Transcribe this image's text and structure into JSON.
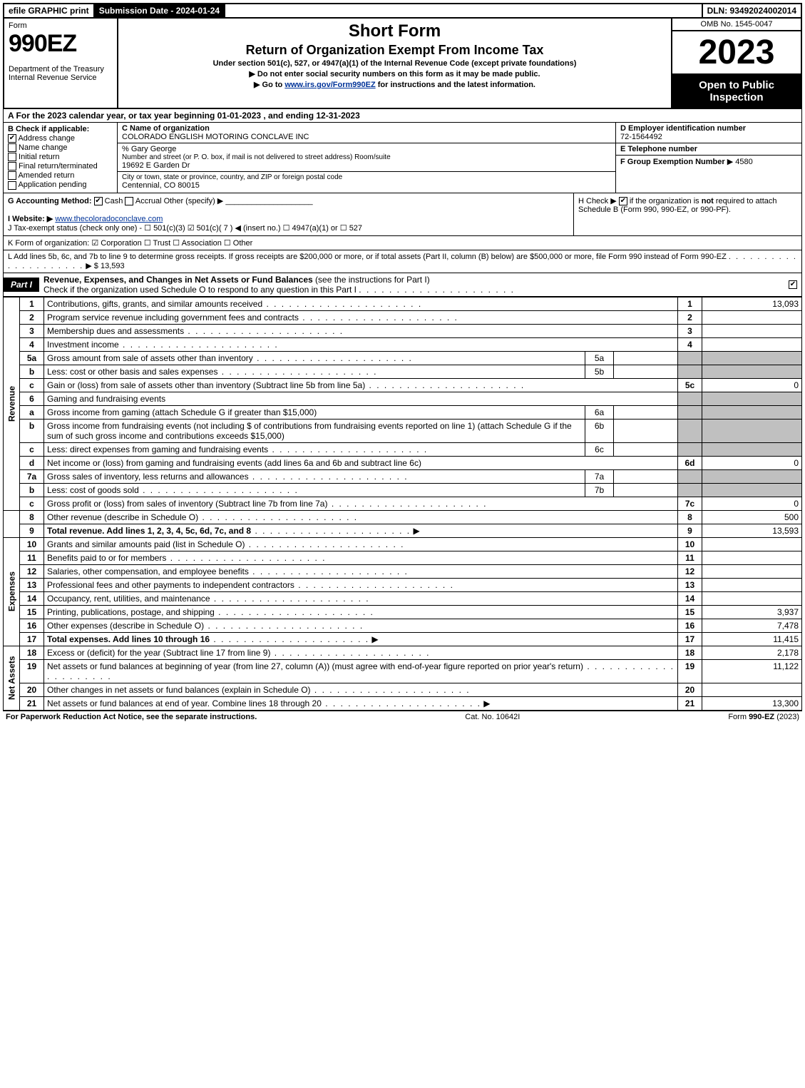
{
  "topbar": {
    "efile": "efile GRAPHIC print",
    "submission": "Submission Date - 2024-01-24",
    "dln": "DLN: 93492024002014"
  },
  "header": {
    "form_label": "Form",
    "form_no": "990EZ",
    "dept": "Department of the Treasury\nInternal Revenue Service",
    "title1": "Short Form",
    "title2": "Return of Organization Exempt From Income Tax",
    "under": "Under section 501(c), 527, or 4947(a)(1) of the Internal Revenue Code (except private foundations)",
    "warn": "▶ Do not enter social security numbers on this form as it may be made public.",
    "goto_pre": "▶ Go to ",
    "goto_link": "www.irs.gov/Form990EZ",
    "goto_post": " for instructions and the latest information.",
    "omb": "OMB No. 1545-0047",
    "year": "2023",
    "open": "Open to Public Inspection"
  },
  "rowA": "A  For the 2023 calendar year, or tax year beginning 01-01-2023 , and ending 12-31-2023",
  "B": {
    "label": "B  Check if applicable:",
    "items": [
      {
        "c": true,
        "t": "Address change"
      },
      {
        "c": false,
        "t": "Name change"
      },
      {
        "c": false,
        "t": "Initial return"
      },
      {
        "c": false,
        "t": "Final return/terminated"
      },
      {
        "c": false,
        "t": "Amended return"
      },
      {
        "c": false,
        "t": "Application pending"
      }
    ]
  },
  "C": {
    "name_lbl": "C Name of organization",
    "name": "COLORADO ENGLISH MOTORING CONCLAVE INC",
    "care": "% Gary George",
    "street_lbl": "Number and street (or P. O. box, if mail is not delivered to street address)        Room/suite",
    "street": "19692 E Garden Dr",
    "city_lbl": "City or town, state or province, country, and ZIP or foreign postal code",
    "city": "Centennial, CO  80015"
  },
  "D": {
    "lbl": "D Employer identification number",
    "val": "72-1564492"
  },
  "E": {
    "lbl": "E Telephone number",
    "val": ""
  },
  "F": {
    "lbl": "F Group Exemption Number",
    "arrow": "▶",
    "val": "4580"
  },
  "G": {
    "lbl": "G Accounting Method:",
    "cash": "Cash",
    "accrual": "Accrual",
    "other": "Other (specify) ▶",
    "cash_checked": true
  },
  "H": {
    "txt1": "H  Check ▶ ",
    "txt2": " if the organization is ",
    "not": "not",
    "txt3": " required to attach Schedule B (Form 990, 990-EZ, or 990-PF).",
    "checked": true
  },
  "I": {
    "lbl": "I Website: ▶",
    "val": "www.thecoloradoconclave.com"
  },
  "J": "J Tax-exempt status (check only one) -  ☐ 501(c)(3)  ☑ 501(c)( 7 ) ◀ (insert no.)  ☐ 4947(a)(1) or  ☐ 527",
  "K": "K Form of organization:  ☑ Corporation  ☐ Trust  ☐ Association  ☐ Other",
  "L": {
    "txt": "L Add lines 5b, 6c, and 7b to line 9 to determine gross receipts. If gross receipts are $200,000 or more, or if total assets (Part II, column (B) below) are $500,000 or more, file Form 990 instead of Form 990-EZ",
    "arrow": "▶ $",
    "val": "13,593"
  },
  "part1": {
    "tag": "Part I",
    "title": "Revenue, Expenses, and Changes in Net Assets or Fund Balances",
    "instr": "(see the instructions for Part I)",
    "check_txt": "Check if the organization used Schedule O to respond to any question in this Part I",
    "checked": true
  },
  "side": {
    "rev": "Revenue",
    "exp": "Expenses",
    "net": "Net Assets"
  },
  "lines": {
    "l1": {
      "n": "1",
      "d": "Contributions, gifts, grants, and similar amounts received",
      "ln": "1",
      "a": "13,093"
    },
    "l2": {
      "n": "2",
      "d": "Program service revenue including government fees and contracts",
      "ln": "2",
      "a": ""
    },
    "l3": {
      "n": "3",
      "d": "Membership dues and assessments",
      "ln": "3",
      "a": ""
    },
    "l4": {
      "n": "4",
      "d": "Investment income",
      "ln": "4",
      "a": ""
    },
    "l5a": {
      "n": "5a",
      "d": "Gross amount from sale of assets other than inventory",
      "sn": "5a",
      "sa": ""
    },
    "l5b": {
      "n": "b",
      "d": "Less: cost or other basis and sales expenses",
      "sn": "5b",
      "sa": ""
    },
    "l5c": {
      "n": "c",
      "d": "Gain or (loss) from sale of assets other than inventory (Subtract line 5b from line 5a)",
      "ln": "5c",
      "a": "0"
    },
    "l6": {
      "n": "6",
      "d": "Gaming and fundraising events"
    },
    "l6a": {
      "n": "a",
      "d": "Gross income from gaming (attach Schedule G if greater than $15,000)",
      "sn": "6a",
      "sa": ""
    },
    "l6b": {
      "n": "b",
      "d": "Gross income from fundraising events (not including $                     of contributions from fundraising events reported on line 1) (attach Schedule G if the sum of such gross income and contributions exceeds $15,000)",
      "sn": "6b",
      "sa": ""
    },
    "l6c": {
      "n": "c",
      "d": "Less: direct expenses from gaming and fundraising events",
      "sn": "6c",
      "sa": ""
    },
    "l6d": {
      "n": "d",
      "d": "Net income or (loss) from gaming and fundraising events (add lines 6a and 6b and subtract line 6c)",
      "ln": "6d",
      "a": "0"
    },
    "l7a": {
      "n": "7a",
      "d": "Gross sales of inventory, less returns and allowances",
      "sn": "7a",
      "sa": ""
    },
    "l7b": {
      "n": "b",
      "d": "Less: cost of goods sold",
      "sn": "7b",
      "sa": ""
    },
    "l7c": {
      "n": "c",
      "d": "Gross profit or (loss) from sales of inventory (Subtract line 7b from line 7a)",
      "ln": "7c",
      "a": "0"
    },
    "l8": {
      "n": "8",
      "d": "Other revenue (describe in Schedule O)",
      "ln": "8",
      "a": "500"
    },
    "l9": {
      "n": "9",
      "d": "Total revenue. Add lines 1, 2, 3, 4, 5c, 6d, 7c, and 8",
      "ln": "9",
      "a": "13,593",
      "bold": true,
      "arrow": true
    },
    "l10": {
      "n": "10",
      "d": "Grants and similar amounts paid (list in Schedule O)",
      "ln": "10",
      "a": ""
    },
    "l11": {
      "n": "11",
      "d": "Benefits paid to or for members",
      "ln": "11",
      "a": ""
    },
    "l12": {
      "n": "12",
      "d": "Salaries, other compensation, and employee benefits",
      "ln": "12",
      "a": ""
    },
    "l13": {
      "n": "13",
      "d": "Professional fees and other payments to independent contractors",
      "ln": "13",
      "a": ""
    },
    "l14": {
      "n": "14",
      "d": "Occupancy, rent, utilities, and maintenance",
      "ln": "14",
      "a": ""
    },
    "l15": {
      "n": "15",
      "d": "Printing, publications, postage, and shipping",
      "ln": "15",
      "a": "3,937"
    },
    "l16": {
      "n": "16",
      "d": "Other expenses (describe in Schedule O)",
      "ln": "16",
      "a": "7,478"
    },
    "l17": {
      "n": "17",
      "d": "Total expenses. Add lines 10 through 16",
      "ln": "17",
      "a": "11,415",
      "bold": true,
      "arrow": true
    },
    "l18": {
      "n": "18",
      "d": "Excess or (deficit) for the year (Subtract line 17 from line 9)",
      "ln": "18",
      "a": "2,178"
    },
    "l19": {
      "n": "19",
      "d": "Net assets or fund balances at beginning of year (from line 27, column (A)) (must agree with end-of-year figure reported on prior year's return)",
      "ln": "19",
      "a": "11,122"
    },
    "l20": {
      "n": "20",
      "d": "Other changes in net assets or fund balances (explain in Schedule O)",
      "ln": "20",
      "a": ""
    },
    "l21": {
      "n": "21",
      "d": "Net assets or fund balances at end of year. Combine lines 18 through 20",
      "ln": "21",
      "a": "13,300",
      "arrow": true
    }
  },
  "footer": {
    "left": "For Paperwork Reduction Act Notice, see the separate instructions.",
    "mid": "Cat. No. 10642I",
    "right_pre": "Form ",
    "right_bold": "990-EZ",
    "right_post": " (2023)"
  }
}
